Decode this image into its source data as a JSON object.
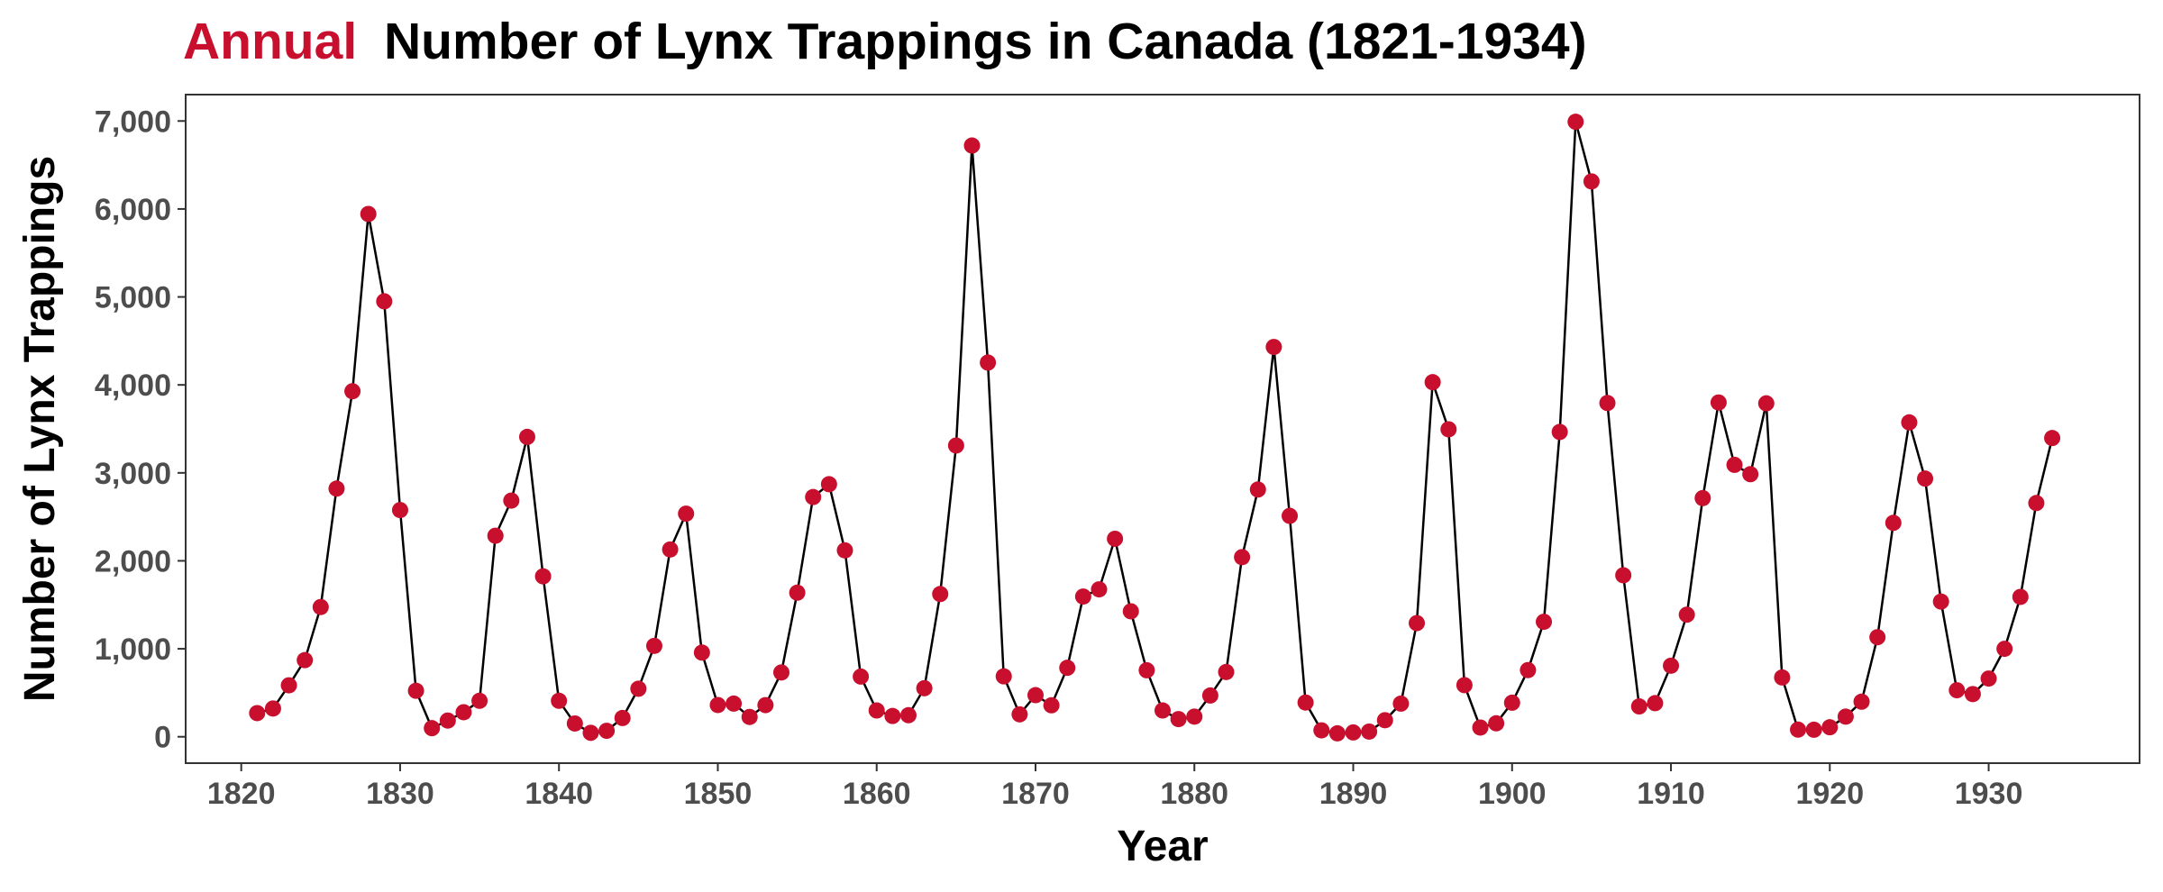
{
  "chart_data": {
    "type": "line",
    "title_parts": [
      {
        "text": "Annual",
        "color": "#c8102e"
      },
      {
        "text": "Number of Lynx Trappings in Canada (1821-1934)",
        "color": "#000000"
      }
    ],
    "xlabel": "Year",
    "ylabel": "Number of Lynx Trappings",
    "xlim": [
      1816.5,
      1939.5
    ],
    "ylim": [
      -300,
      7300
    ],
    "xticks": [
      1820,
      1830,
      1840,
      1850,
      1860,
      1870,
      1880,
      1890,
      1900,
      1910,
      1920,
      1930
    ],
    "xtick_labels": [
      "1820",
      "1830",
      "1840",
      "1850",
      "1860",
      "1870",
      "1880",
      "1890",
      "1900",
      "1910",
      "1920",
      "1930"
    ],
    "yticks": [
      0,
      1000,
      2000,
      3000,
      4000,
      5000,
      6000,
      7000
    ],
    "ytick_labels": [
      "0",
      "1,000",
      "2,000",
      "3,000",
      "4,000",
      "5,000",
      "6,000",
      "7,000"
    ],
    "grid": false,
    "legend": "none",
    "line_color": "#000000",
    "marker_color": "#c8102e",
    "x": [
      1821,
      1822,
      1823,
      1824,
      1825,
      1826,
      1827,
      1828,
      1829,
      1830,
      1831,
      1832,
      1833,
      1834,
      1835,
      1836,
      1837,
      1838,
      1839,
      1840,
      1841,
      1842,
      1843,
      1844,
      1845,
      1846,
      1847,
      1848,
      1849,
      1850,
      1851,
      1852,
      1853,
      1854,
      1855,
      1856,
      1857,
      1858,
      1859,
      1860,
      1861,
      1862,
      1863,
      1864,
      1865,
      1866,
      1867,
      1868,
      1869,
      1870,
      1871,
      1872,
      1873,
      1874,
      1875,
      1876,
      1877,
      1878,
      1879,
      1880,
      1881,
      1882,
      1883,
      1884,
      1885,
      1886,
      1887,
      1888,
      1889,
      1890,
      1891,
      1892,
      1893,
      1894,
      1895,
      1896,
      1897,
      1898,
      1899,
      1900,
      1901,
      1902,
      1903,
      1904,
      1905,
      1906,
      1907,
      1908,
      1909,
      1910,
      1911,
      1912,
      1913,
      1914,
      1915,
      1916,
      1917,
      1918,
      1919,
      1920,
      1921,
      1922,
      1923,
      1924,
      1925,
      1926,
      1927,
      1928,
      1929,
      1930,
      1931,
      1932,
      1933,
      1934
    ],
    "y": [
      269,
      321,
      585,
      871,
      1475,
      2821,
      3928,
      5943,
      4950,
      2577,
      523,
      98,
      184,
      279,
      409,
      2285,
      2685,
      3409,
      1824,
      409,
      151,
      45,
      68,
      213,
      546,
      1033,
      2129,
      2536,
      957,
      361,
      377,
      225,
      360,
      731,
      1638,
      2725,
      2871,
      2119,
      684,
      299,
      236,
      245,
      552,
      1623,
      3311,
      6721,
      4254,
      687,
      255,
      473,
      358,
      784,
      1594,
      1676,
      2251,
      1426,
      756,
      299,
      201,
      229,
      469,
      736,
      2042,
      2811,
      4431,
      2511,
      389,
      73,
      39,
      49,
      59,
      188,
      377,
      1292,
      4031,
      3495,
      587,
      105,
      153,
      387,
      758,
      1307,
      3465,
      6991,
      6313,
      3794,
      1836,
      345,
      382,
      808,
      1388,
      2713,
      3800,
      3091,
      2985,
      3790,
      674,
      81,
      80,
      108,
      229,
      399,
      1132,
      2432,
      3574,
      2935,
      1537,
      529,
      485,
      662,
      1000,
      1590,
      2657,
      3396
    ]
  }
}
